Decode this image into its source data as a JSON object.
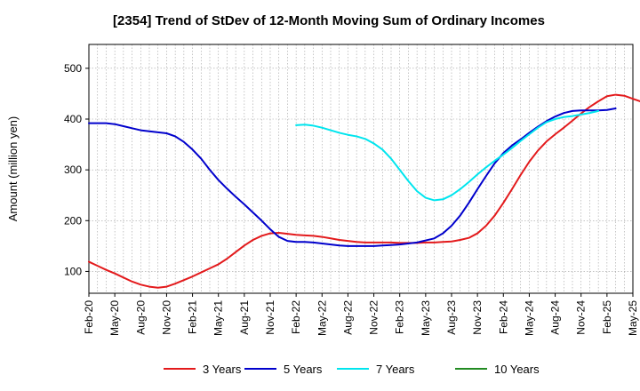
{
  "chart_data": {
    "type": "line",
    "title": "[2354]  Trend of StDev of 12-Month Moving Sum of Ordinary Incomes",
    "xlabel": "",
    "ylabel": "Amount (million yen)",
    "ylim": [
      57,
      547
    ],
    "yticks": [
      100,
      200,
      300,
      400,
      500
    ],
    "x_ticks": [
      "Feb-20",
      "May-20",
      "Aug-20",
      "Nov-20",
      "Feb-21",
      "May-21",
      "Aug-21",
      "Nov-21",
      "Feb-22",
      "May-22",
      "Aug-22",
      "Nov-22",
      "Feb-23",
      "May-23",
      "Aug-23",
      "Nov-23",
      "Feb-24",
      "May-24",
      "Aug-24",
      "Nov-24",
      "Feb-25",
      "May-25"
    ],
    "grid": true,
    "legend_position": "bottom",
    "series": [
      {
        "name": "3 Years",
        "color": "#e31a1c",
        "start_index": 0,
        "values": [
          119,
          111,
          103,
          96,
          88,
          80,
          74,
          70,
          68,
          70,
          76,
          83,
          90,
          98,
          106,
          114,
          125,
          138,
          151,
          162,
          170,
          175,
          176,
          174,
          172,
          171,
          170,
          168,
          165,
          162,
          160,
          158,
          157,
          157,
          157,
          157,
          156,
          156,
          156,
          157,
          157,
          158,
          159,
          162,
          166,
          175,
          190,
          210,
          235,
          262,
          290,
          316,
          338,
          356,
          370,
          383,
          397,
          411,
          424,
          435,
          445,
          448,
          446,
          440,
          434,
          430,
          426
        ]
      },
      {
        "name": "5 Years",
        "color": "#0000cc",
        "start_index": 0,
        "values": [
          392,
          392,
          392,
          390,
          386,
          382,
          378,
          376,
          374,
          372,
          366,
          355,
          340,
          322,
          300,
          280,
          263,
          247,
          232,
          216,
          200,
          183,
          168,
          160,
          158,
          158,
          157,
          155,
          153,
          151,
          150,
          150,
          150,
          150,
          151,
          152,
          153,
          155,
          157,
          161,
          165,
          175,
          190,
          210,
          235,
          262,
          288,
          313,
          333,
          348,
          360,
          373,
          385,
          396,
          405,
          412,
          416,
          417,
          417,
          417,
          418,
          421
        ]
      },
      {
        "name": "7 Years",
        "color": "#00e5ee",
        "start_index": 24,
        "values": [
          388,
          389,
          387,
          383,
          378,
          373,
          369,
          366,
          361,
          352,
          340,
          322,
          300,
          278,
          258,
          245,
          240,
          242,
          250,
          262,
          276,
          291,
          305,
          318,
          330,
          343,
          357,
          370,
          383,
          394,
          400,
          404,
          406,
          409,
          412,
          416
        ]
      },
      {
        "name": "10 Years",
        "color": "#228b22",
        "start_index": 0,
        "values": []
      }
    ]
  }
}
